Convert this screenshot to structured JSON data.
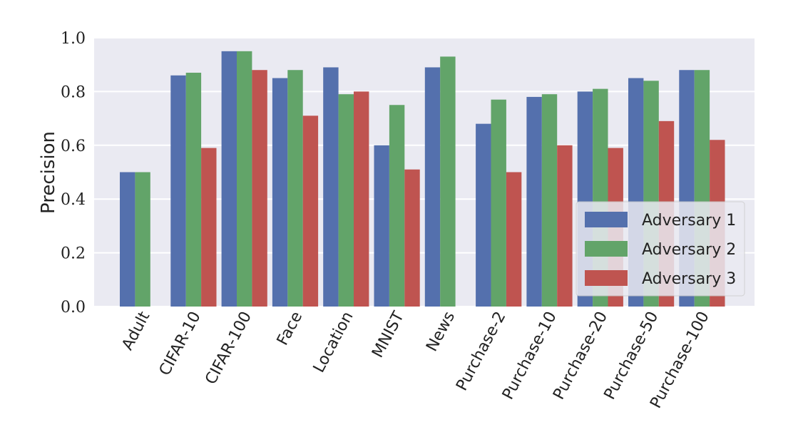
{
  "chart_data": {
    "type": "bar",
    "title": "",
    "xlabel": "",
    "ylabel": "Precision",
    "ylim": [
      0.0,
      1.0
    ],
    "yticks": [
      "0.0",
      "0.2",
      "0.4",
      "0.6",
      "0.8",
      "1.0"
    ],
    "grid": true,
    "legend_position": "bottom-right",
    "categories": [
      "Adult",
      "CIFAR-10",
      "CIFAR-100",
      "Face",
      "Location",
      "MNIST",
      "News",
      "Purchase-2",
      "Purchase-10",
      "Purchase-20",
      "Purchase-50",
      "Purchase-100"
    ],
    "series": [
      {
        "name": "Adversary 1",
        "color": "#5470ad",
        "values": [
          0.5,
          0.86,
          0.95,
          0.85,
          0.89,
          0.6,
          0.89,
          0.68,
          0.78,
          0.8,
          0.85,
          0.88
        ]
      },
      {
        "name": "Adversary 2",
        "color": "#62a469",
        "values": [
          0.5,
          0.87,
          0.95,
          0.88,
          0.79,
          0.75,
          0.93,
          0.77,
          0.79,
          0.81,
          0.84,
          0.88
        ]
      },
      {
        "name": "Adversary 3",
        "color": "#bf5450",
        "values": [
          null,
          0.59,
          0.88,
          0.71,
          0.8,
          0.51,
          null,
          0.5,
          0.6,
          0.59,
          0.69,
          0.62
        ]
      }
    ]
  }
}
